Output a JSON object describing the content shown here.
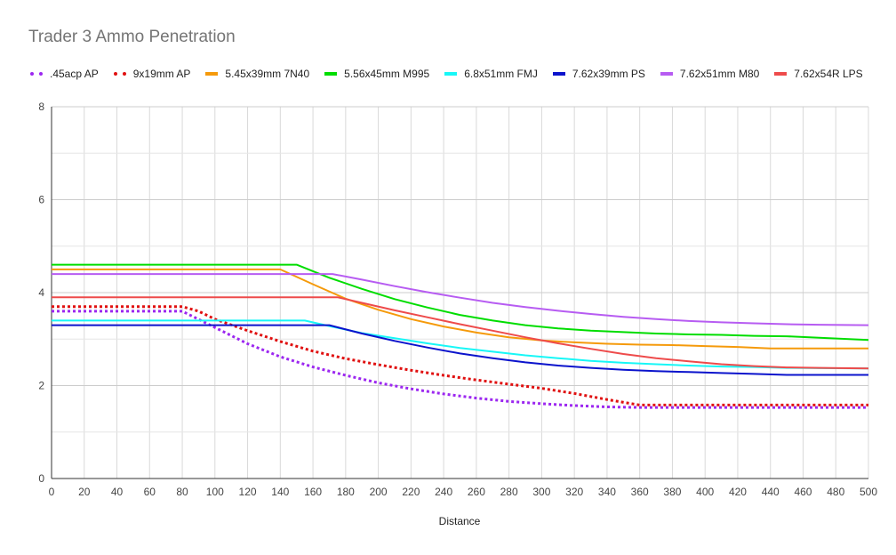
{
  "chart_data": {
    "type": "line",
    "title": "Trader 3 Ammo Penetration",
    "xlabel": "Distance",
    "ylabel": "",
    "xlim": [
      0,
      500
    ],
    "ylim": [
      0,
      8
    ],
    "x_ticks": [
      0,
      20,
      40,
      60,
      80,
      100,
      120,
      140,
      160,
      180,
      200,
      220,
      240,
      260,
      280,
      300,
      320,
      340,
      360,
      380,
      400,
      420,
      440,
      460,
      480,
      500
    ],
    "y_ticks": [
      0,
      2,
      4,
      6,
      8
    ],
    "grid": true,
    "legend_position": "top",
    "series": [
      {
        "name": ".45acp AP",
        "color": "#9c27f0",
        "dashed": true,
        "points": [
          [
            0,
            3.6
          ],
          [
            80,
            3.6
          ],
          [
            100,
            3.25
          ],
          [
            120,
            2.9
          ],
          [
            140,
            2.62
          ],
          [
            160,
            2.4
          ],
          [
            180,
            2.22
          ],
          [
            200,
            2.06
          ],
          [
            220,
            1.93
          ],
          [
            240,
            1.82
          ],
          [
            260,
            1.73
          ],
          [
            280,
            1.66
          ],
          [
            300,
            1.61
          ],
          [
            320,
            1.57
          ],
          [
            340,
            1.54
          ],
          [
            360,
            1.53
          ],
          [
            500,
            1.53
          ]
        ]
      },
      {
        "name": "9x19mm AP",
        "color": "#e01010",
        "dashed": true,
        "points": [
          [
            0,
            3.7
          ],
          [
            80,
            3.7
          ],
          [
            90,
            3.6
          ],
          [
            100,
            3.43
          ],
          [
            120,
            3.18
          ],
          [
            140,
            2.95
          ],
          [
            160,
            2.74
          ],
          [
            180,
            2.58
          ],
          [
            200,
            2.45
          ],
          [
            220,
            2.33
          ],
          [
            240,
            2.22
          ],
          [
            260,
            2.12
          ],
          [
            280,
            2.03
          ],
          [
            300,
            1.94
          ],
          [
            320,
            1.83
          ],
          [
            340,
            1.7
          ],
          [
            360,
            1.58
          ],
          [
            500,
            1.58
          ]
        ]
      },
      {
        "name": "5.45x39mm 7N40",
        "color": "#f59a0b",
        "dashed": false,
        "points": [
          [
            0,
            4.5
          ],
          [
            140,
            4.5
          ],
          [
            160,
            4.18
          ],
          [
            180,
            3.87
          ],
          [
            200,
            3.63
          ],
          [
            220,
            3.43
          ],
          [
            240,
            3.27
          ],
          [
            260,
            3.14
          ],
          [
            280,
            3.04
          ],
          [
            300,
            2.97
          ],
          [
            320,
            2.93
          ],
          [
            340,
            2.9
          ],
          [
            360,
            2.88
          ],
          [
            380,
            2.87
          ],
          [
            400,
            2.85
          ],
          [
            420,
            2.83
          ],
          [
            440,
            2.8
          ],
          [
            500,
            2.8
          ]
        ]
      },
      {
        "name": "5.56x45mm M995",
        "color": "#00dd00",
        "dashed": false,
        "points": [
          [
            0,
            4.6
          ],
          [
            150,
            4.6
          ],
          [
            170,
            4.32
          ],
          [
            190,
            4.08
          ],
          [
            210,
            3.86
          ],
          [
            230,
            3.68
          ],
          [
            250,
            3.52
          ],
          [
            270,
            3.4
          ],
          [
            290,
            3.3
          ],
          [
            310,
            3.23
          ],
          [
            330,
            3.18
          ],
          [
            350,
            3.15
          ],
          [
            370,
            3.12
          ],
          [
            390,
            3.1
          ],
          [
            410,
            3.09
          ],
          [
            430,
            3.07
          ],
          [
            450,
            3.06
          ],
          [
            470,
            3.03
          ],
          [
            500,
            2.98
          ]
        ]
      },
      {
        "name": "6.8x51mm FMJ",
        "color": "#17f7f7",
        "dashed": false,
        "points": [
          [
            0,
            3.4
          ],
          [
            155,
            3.4
          ],
          [
            170,
            3.28
          ],
          [
            190,
            3.13
          ],
          [
            210,
            3.02
          ],
          [
            230,
            2.91
          ],
          [
            250,
            2.81
          ],
          [
            270,
            2.73
          ],
          [
            290,
            2.65
          ],
          [
            310,
            2.59
          ],
          [
            330,
            2.53
          ],
          [
            350,
            2.49
          ],
          [
            370,
            2.46
          ],
          [
            390,
            2.43
          ],
          [
            410,
            2.41
          ],
          [
            430,
            2.4
          ],
          [
            450,
            2.38
          ],
          [
            500,
            2.37
          ]
        ]
      },
      {
        "name": "7.62x39mm PS",
        "color": "#0b13cc",
        "dashed": false,
        "points": [
          [
            0,
            3.3
          ],
          [
            170,
            3.3
          ],
          [
            190,
            3.12
          ],
          [
            210,
            2.96
          ],
          [
            230,
            2.82
          ],
          [
            250,
            2.69
          ],
          [
            270,
            2.59
          ],
          [
            290,
            2.5
          ],
          [
            310,
            2.43
          ],
          [
            330,
            2.38
          ],
          [
            350,
            2.34
          ],
          [
            370,
            2.31
          ],
          [
            390,
            2.29
          ],
          [
            410,
            2.27
          ],
          [
            430,
            2.25
          ],
          [
            450,
            2.23
          ],
          [
            500,
            2.23
          ]
        ]
      },
      {
        "name": "7.62x51mm M80",
        "color": "#b75cf2",
        "dashed": false,
        "points": [
          [
            0,
            4.4
          ],
          [
            172,
            4.4
          ],
          [
            190,
            4.28
          ],
          [
            210,
            4.14
          ],
          [
            230,
            4.01
          ],
          [
            250,
            3.89
          ],
          [
            270,
            3.78
          ],
          [
            290,
            3.69
          ],
          [
            310,
            3.61
          ],
          [
            330,
            3.54
          ],
          [
            350,
            3.48
          ],
          [
            370,
            3.43
          ],
          [
            390,
            3.39
          ],
          [
            410,
            3.36
          ],
          [
            430,
            3.34
          ],
          [
            450,
            3.32
          ],
          [
            470,
            3.31
          ],
          [
            500,
            3.3
          ]
        ]
      },
      {
        "name": "7.62x54R LPS",
        "color": "#ee4b4b",
        "dashed": false,
        "points": [
          [
            0,
            3.9
          ],
          [
            175,
            3.9
          ],
          [
            190,
            3.78
          ],
          [
            210,
            3.62
          ],
          [
            230,
            3.47
          ],
          [
            250,
            3.32
          ],
          [
            270,
            3.18
          ],
          [
            290,
            3.04
          ],
          [
            310,
            2.91
          ],
          [
            330,
            2.79
          ],
          [
            350,
            2.68
          ],
          [
            370,
            2.59
          ],
          [
            390,
            2.52
          ],
          [
            410,
            2.46
          ],
          [
            430,
            2.42
          ],
          [
            450,
            2.39
          ],
          [
            470,
            2.38
          ],
          [
            500,
            2.37
          ]
        ]
      }
    ]
  }
}
